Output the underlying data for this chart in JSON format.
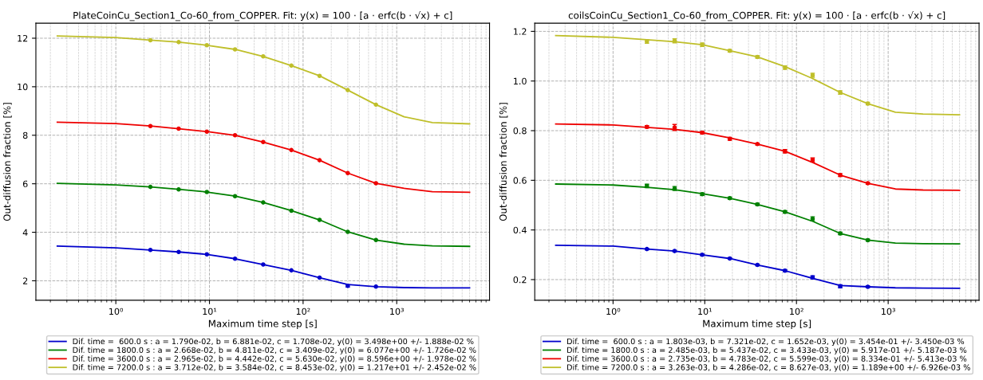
{
  "chart_data": [
    {
      "type": "line",
      "title": "PlateCoinCu_Section1_Co-60_from_COPPER. Fit: y(x) = 100 · [a · erfc(b · √x) + c]",
      "xlabel": "Maximum time step [s]",
      "ylabel": "Out-diffusion fraction [%]",
      "log": "x",
      "grid": true,
      "legend": "bottom",
      "xlim": [
        0.14,
        9800
      ],
      "xticks": [
        {
          "value": 1,
          "label": "10⁰"
        },
        {
          "value": 10,
          "label": "10¹"
        },
        {
          "value": 100,
          "label": "10²"
        },
        {
          "value": 1000,
          "label": "10³"
        }
      ],
      "ylim": [
        1.2,
        12.62
      ],
      "yticks": [
        2,
        4,
        6,
        8,
        10,
        12
      ],
      "series": [
        {
          "name": "Dif. time =  600.0 s : a = 1.790e-02, b = 6.881e-02, c = 1.708e-02, y(0) = 3.498e+00 +/- 1.888e-02 %",
          "color": "#0000cc",
          "marker": "none",
          "x": [
            0.237,
            1,
            2.34,
            4.69,
            9.38,
            18.75,
            37.5,
            75,
            150,
            300,
            600,
            1200,
            2400,
            6000
          ],
          "values": [
            3.43,
            3.36,
            3.27,
            3.19,
            3.09,
            2.91,
            2.67,
            2.43,
            2.13,
            1.85,
            1.76,
            1.72,
            1.71,
            1.71
          ]
        },
        {
          "name": "Dif. time = 1800.0 s : a = 2.668e-02, b = 4.811e-02, c = 3.409e-02, y(0) = 6.077e+00 +/- 1.726e-02 %",
          "color": "#008000",
          "marker": "none",
          "x": [
            0.237,
            1,
            2.34,
            4.69,
            9.38,
            18.75,
            37.5,
            75,
            150,
            300,
            600,
            1200,
            2400,
            6000
          ],
          "values": [
            6.02,
            5.95,
            5.87,
            5.77,
            5.66,
            5.49,
            5.23,
            4.89,
            4.51,
            4.02,
            3.68,
            3.51,
            3.44,
            3.42
          ]
        },
        {
          "name": "Dif. time = 3600.0 s : a = 2.965e-02, b = 4.442e-02, c = 5.630e-02, y(0) = 8.596e+00 +/- 1.978e-02 %",
          "color": "#ee0000",
          "marker": "none",
          "x": [
            0.237,
            1,
            2.34,
            4.69,
            9.38,
            18.75,
            37.5,
            75,
            150,
            300,
            600,
            1200,
            2400,
            6000
          ],
          "values": [
            8.54,
            8.48,
            8.38,
            8.27,
            8.15,
            8.0,
            7.72,
            7.39,
            6.97,
            6.44,
            6.02,
            5.81,
            5.67,
            5.65
          ]
        },
        {
          "name": "Dif. time = 7200.0 s : a = 3.712e-02, b = 3.584e-02, c = 8.453e-02, y(0) = 1.217e+01 +/- 2.452e-02 %",
          "color": "#bfbf2a",
          "marker": "none",
          "x": [
            0.237,
            1,
            2.34,
            4.69,
            9.38,
            18.75,
            37.5,
            75,
            150,
            300,
            600,
            1200,
            2400,
            6000
          ],
          "values": [
            12.09,
            12.03,
            11.92,
            11.84,
            11.71,
            11.54,
            11.25,
            10.87,
            10.45,
            9.86,
            9.26,
            8.76,
            8.52,
            8.47
          ]
        },
        {
          "type": "scatter",
          "color": "#0000cc",
          "marker": "circle",
          "x": [
            2.34,
            4.69,
            9.38,
            18.75,
            37.5,
            75,
            150,
            300,
            600
          ],
          "values": [
            3.27,
            3.19,
            3.09,
            2.91,
            2.67,
            2.43,
            2.13,
            1.79,
            1.76
          ],
          "errors": [
            null,
            null,
            null,
            null,
            null,
            null,
            null,
            0.05,
            null
          ]
        },
        {
          "type": "scatter",
          "color": "#008000",
          "marker": "circle",
          "x": [
            2.34,
            4.69,
            9.38,
            18.75,
            37.5,
            75,
            150,
            300,
            600
          ],
          "values": [
            5.87,
            5.77,
            5.66,
            5.49,
            5.23,
            4.89,
            4.51,
            4.02,
            3.68
          ]
        },
        {
          "type": "scatter",
          "color": "#ee0000",
          "marker": "circle",
          "x": [
            2.34,
            4.69,
            9.38,
            18.75,
            37.5,
            75,
            150,
            300,
            600
          ],
          "values": [
            8.38,
            8.27,
            8.15,
            8.0,
            7.72,
            7.39,
            6.97,
            6.44,
            6.02
          ]
        },
        {
          "type": "scatter",
          "color": "#bfbf2a",
          "marker": "circle",
          "x": [
            2.34,
            4.69,
            9.38,
            18.75,
            37.5,
            75,
            150,
            300,
            600
          ],
          "values": [
            11.92,
            11.84,
            11.71,
            11.54,
            11.25,
            10.87,
            10.45,
            9.86,
            9.26
          ]
        }
      ]
    },
    {
      "type": "line",
      "title": "coilsCoinCu_Section1_Co-60_from_COPPER. Fit: y(x) = 100 · [a · erfc(b · √x) + c]",
      "xlabel": "Maximum time step [s]",
      "ylabel": "Out-diffusion fraction [%]",
      "log": "x",
      "grid": true,
      "legend": "bottom",
      "xlim": [
        0.14,
        9800
      ],
      "xticks": [
        {
          "value": 1,
          "label": "10⁰"
        },
        {
          "value": 10,
          "label": "10¹"
        },
        {
          "value": 100,
          "label": "10²"
        },
        {
          "value": 1000,
          "label": "10³"
        }
      ],
      "ylim": [
        0.117,
        1.233
      ],
      "yticks": [
        0.2,
        0.4,
        0.6,
        0.8,
        {
          "value": 1.0,
          "label": "1.0"
        },
        1.2
      ],
      "series": [
        {
          "name": "Dif. time =  600.0 s : a = 1.803e-03, b = 7.321e-02, c = 1.652e-03, y(0) = 3.454e-01 +/- 3.450e-03 %",
          "color": "#0000cc",
          "marker": "none",
          "x": [
            0.237,
            1,
            2.34,
            4.69,
            9.38,
            18.75,
            37.5,
            75,
            150,
            300,
            600,
            1200,
            2400,
            6000
          ],
          "values": [
            0.338,
            0.335,
            0.323,
            0.315,
            0.3,
            0.285,
            0.259,
            0.236,
            0.205,
            0.176,
            0.171,
            0.167,
            0.166,
            0.165
          ]
        },
        {
          "name": "Dif. time = 1800.0 s : a = 2.485e-03, b = 5.437e-02, c = 3.433e-03, y(0) = 5.917e-01 +/- 5.187e-03 %",
          "color": "#008000",
          "marker": "none",
          "x": [
            0.237,
            1,
            2.34,
            4.69,
            9.38,
            18.75,
            37.5,
            75,
            150,
            300,
            600,
            1200,
            2400,
            6000
          ],
          "values": [
            0.585,
            0.581,
            0.572,
            0.562,
            0.546,
            0.528,
            0.503,
            0.473,
            0.435,
            0.386,
            0.359,
            0.347,
            0.345,
            0.344
          ]
        },
        {
          "name": "Dif. time = 3600.0 s : a = 2.735e-03, b = 4.783e-02, c = 5.599e-03, y(0) = 8.334e-01 +/- 5.413e-03 %",
          "color": "#ee0000",
          "marker": "none",
          "x": [
            0.237,
            1,
            2.34,
            4.69,
            9.38,
            18.75,
            37.5,
            75,
            150,
            300,
            600,
            1200,
            2400,
            6000
          ],
          "values": [
            0.827,
            0.823,
            0.813,
            0.805,
            0.792,
            0.771,
            0.746,
            0.717,
            0.672,
            0.621,
            0.588,
            0.565,
            0.561,
            0.56
          ]
        },
        {
          "name": "Dif. time = 7200.0 s : a = 3.263e-03, b = 4.286e-02, c = 8.627e-03, y(0) = 1.189e+00 +/- 6.926e-03 %",
          "color": "#bfbf2a",
          "marker": "none",
          "x": [
            0.237,
            1,
            2.34,
            4.69,
            9.38,
            18.75,
            37.5,
            75,
            150,
            300,
            600,
            1200,
            2400,
            6000
          ],
          "values": [
            1.183,
            1.176,
            1.166,
            1.158,
            1.146,
            1.122,
            1.097,
            1.058,
            1.01,
            0.954,
            0.909,
            0.874,
            0.867,
            0.864
          ]
        },
        {
          "type": "scatter",
          "color": "#0000cc",
          "marker": "circle",
          "x": [
            2.34,
            4.69,
            9.38,
            18.75,
            37.5,
            75,
            150,
            300,
            600
          ],
          "values": [
            0.323,
            0.315,
            0.3,
            0.285,
            0.259,
            0.236,
            0.209,
            0.173,
            0.171
          ],
          "errors": [
            0.003,
            0.003,
            0.003,
            0.003,
            0.003,
            0.004,
            0.006,
            0.006,
            0.003
          ]
        },
        {
          "type": "scatter",
          "color": "#008000",
          "marker": "circle",
          "x": [
            2.34,
            4.69,
            9.38,
            18.75,
            37.5,
            75,
            150,
            300,
            600
          ],
          "values": [
            0.577,
            0.567,
            0.544,
            0.528,
            0.503,
            0.473,
            0.445,
            0.386,
            0.359
          ],
          "errors": [
            0.007,
            0.008,
            0.005,
            0.004,
            0.004,
            0.005,
            0.008,
            0.005,
            0.004
          ]
        },
        {
          "type": "scatter",
          "color": "#ee0000",
          "marker": "circle",
          "x": [
            2.34,
            4.69,
            9.38,
            18.75,
            37.5,
            75,
            150,
            300,
            600
          ],
          "values": [
            0.815,
            0.813,
            0.792,
            0.767,
            0.746,
            0.717,
            0.682,
            0.621,
            0.588
          ],
          "errors": [
            0.005,
            0.012,
            0.005,
            0.006,
            0.004,
            0.007,
            0.008,
            0.006,
            0.004
          ]
        },
        {
          "type": "scatter",
          "color": "#bfbf2a",
          "marker": "circle",
          "x": [
            2.34,
            4.69,
            9.38,
            18.75,
            37.5,
            75,
            150,
            300,
            600
          ],
          "values": [
            1.159,
            1.162,
            1.146,
            1.122,
            1.097,
            1.054,
            1.023,
            0.954,
            0.909
          ],
          "errors": [
            0.007,
            0.008,
            0.007,
            0.005,
            0.005,
            0.007,
            0.008,
            0.007,
            0.005
          ]
        }
      ]
    }
  ]
}
